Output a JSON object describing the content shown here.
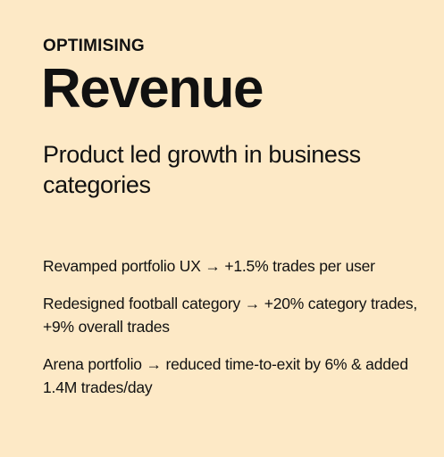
{
  "eyebrow": "OPTIMISING",
  "headline": "Revenue",
  "subhead": "Product led growth in business categories",
  "achievements": [
    "Revamped portfolio UX → +1.5% trades per user",
    "Redesigned football category → +20% category trades, +9% overall trades",
    "Arena portfolio → reduced time-to-exit by 6% & added 1.4M trades/day"
  ],
  "colors": {
    "background": "#fde9c6",
    "text": "#111111"
  }
}
